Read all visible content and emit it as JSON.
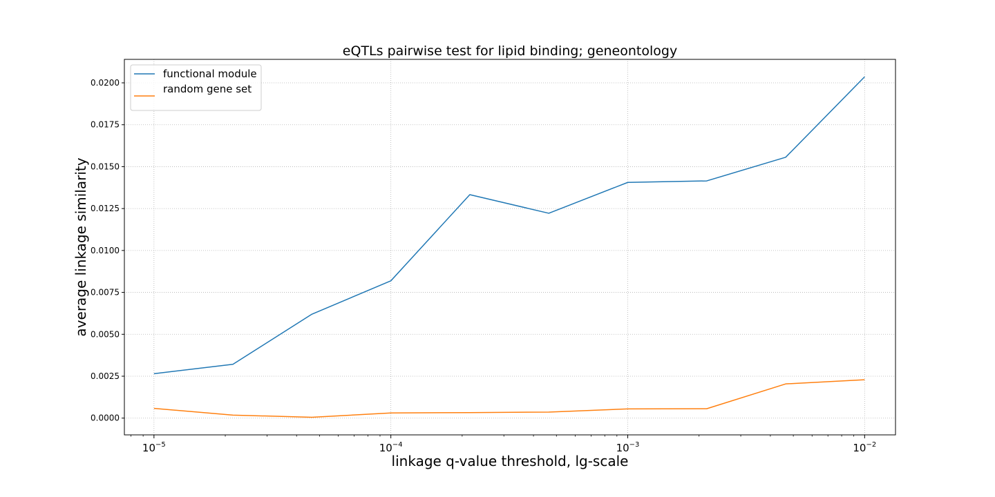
{
  "chart_data": {
    "type": "line",
    "title": "eQTLs pairwise test for lipid binding; geneontology",
    "xlabel": "linkage q-value threshold, lg-scale",
    "ylabel": "average linkage similarity",
    "x_scale": "log",
    "xlim": [
      7.5e-06,
      0.0135
    ],
    "ylim": [
      -0.001,
      0.0214
    ],
    "x": [
      1e-05,
      2.154e-05,
      4.642e-05,
      0.0001,
      0.0002154,
      0.0004642,
      0.001,
      0.002154,
      0.004642,
      0.01
    ],
    "x_ticks": [
      {
        "value": 1e-05,
        "base": "10",
        "exp": "−5"
      },
      {
        "value": 0.0001,
        "base": "10",
        "exp": "−4"
      },
      {
        "value": 0.001,
        "base": "10",
        "exp": "−3"
      },
      {
        "value": 0.01,
        "base": "10",
        "exp": "−2"
      }
    ],
    "y_ticks": [
      {
        "value": 0.0,
        "label": "0.0000"
      },
      {
        "value": 0.0025,
        "label": "0.0025"
      },
      {
        "value": 0.005,
        "label": "0.0050"
      },
      {
        "value": 0.0075,
        "label": "0.0075"
      },
      {
        "value": 0.01,
        "label": "0.0100"
      },
      {
        "value": 0.0125,
        "label": "0.0125"
      },
      {
        "value": 0.015,
        "label": "0.0150"
      },
      {
        "value": 0.0175,
        "label": "0.0175"
      },
      {
        "value": 0.02,
        "label": "0.0200"
      }
    ],
    "series": [
      {
        "name": "functional module",
        "color": "#1f77b4",
        "values": [
          0.00265,
          0.00321,
          0.0062,
          0.00819,
          0.01333,
          0.01222,
          0.01406,
          0.01415,
          0.01556,
          0.02036
        ]
      },
      {
        "name": "random gene set",
        "color": "#ff7f0e",
        "values": [
          0.00058,
          0.00018,
          5e-05,
          0.00031,
          0.00033,
          0.00036,
          0.00055,
          0.00056,
          0.00204,
          0.00229
        ]
      }
    ],
    "grid": true,
    "legend_position": "upper-left"
  }
}
